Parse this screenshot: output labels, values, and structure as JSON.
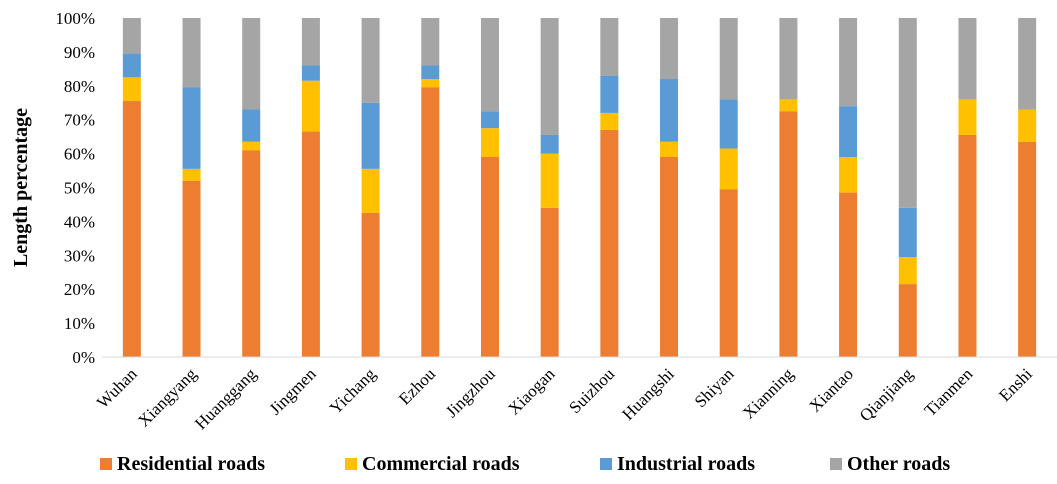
{
  "chart_data": {
    "type": "bar",
    "stacked": true,
    "ylabel": "Length percentage",
    "ylim": [
      0,
      100
    ],
    "yticks": [
      "0%",
      "10%",
      "20%",
      "30%",
      "40%",
      "50%",
      "60%",
      "70%",
      "80%",
      "90%",
      "100%"
    ],
    "grid": false,
    "legend_position": "bottom",
    "categories": [
      "Wuhan",
      "Xiangyang",
      "Huanggang",
      "Jingmen",
      "Yichang",
      "Ezhou",
      "Jingzhou",
      "Xiaogan",
      "Suizhou",
      "Huangshi",
      "Shiyan",
      "Xianning",
      "Xiantao",
      "Qianjiang",
      "Tianmen",
      "Enshi"
    ],
    "series": [
      {
        "name": "Residential roads",
        "color": "#ED7D31",
        "values": [
          75.5,
          52,
          61,
          66.5,
          42.5,
          79.5,
          59,
          44,
          67,
          59,
          49.5,
          72.5,
          48.5,
          21.5,
          65.5,
          63.5
        ]
      },
      {
        "name": "Commercial roads",
        "color": "#FFC000",
        "values": [
          7,
          3.5,
          2.5,
          15,
          13,
          2.5,
          8.5,
          16,
          5,
          4.5,
          12,
          3.5,
          10.5,
          8,
          10.5,
          9.5
        ]
      },
      {
        "name": "Industrial roads",
        "color": "#5B9BD5",
        "values": [
          7,
          24,
          9.5,
          4.5,
          19.5,
          4,
          5,
          5.5,
          11,
          18.5,
          14.5,
          0,
          15,
          14.5,
          0,
          0
        ]
      },
      {
        "name": "Other roads",
        "color": "#A5A5A5",
        "values": [
          10.5,
          20.5,
          27,
          14,
          25,
          14,
          27.5,
          34.5,
          17,
          18,
          24,
          24,
          26,
          56,
          24,
          27
        ]
      }
    ]
  }
}
